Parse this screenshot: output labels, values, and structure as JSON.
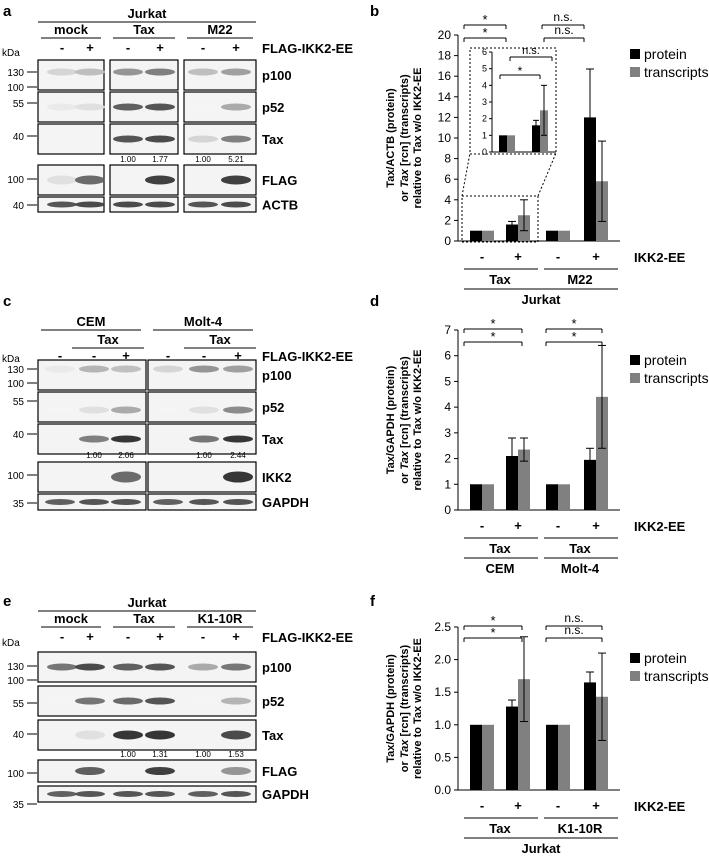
{
  "panel_letters": [
    "a",
    "b",
    "c",
    "d",
    "e",
    "f"
  ],
  "blot_a": {
    "cell_line": "Jurkat",
    "groups": [
      "mock",
      "Tax",
      "M22"
    ],
    "signs": [
      "-",
      "+",
      "-",
      "+",
      "-",
      "+"
    ],
    "treatment": "FLAG-IKK2-EE",
    "kda_label": "kDa",
    "bands": [
      "p100",
      "p52",
      "Tax",
      "FLAG",
      "ACTB"
    ],
    "markers": [
      "130",
      "100",
      "55",
      "40",
      "100",
      "40"
    ],
    "quant": [
      "1.00",
      "1.77",
      "1.00",
      "5.21"
    ]
  },
  "blot_c": {
    "groups": [
      "CEM",
      "Molt-4"
    ],
    "sub_groups": [
      "Tax",
      "Tax"
    ],
    "signs": [
      "-",
      "-",
      "+",
      "-",
      "-",
      "+"
    ],
    "treatment": "FLAG-IKK2-EE",
    "kda_label": "kDa",
    "bands": [
      "p100",
      "p52",
      "Tax",
      "IKK2",
      "GAPDH"
    ],
    "markers": [
      "130",
      "100",
      "55",
      "40",
      "100",
      "35"
    ],
    "quant": [
      "1.00",
      "2.06",
      "1.00",
      "2.44"
    ]
  },
  "blot_e": {
    "cell_line": "Jurkat",
    "groups": [
      "mock",
      "Tax",
      "K1-10R"
    ],
    "signs": [
      "-",
      "+",
      "-",
      "+",
      "-",
      "+"
    ],
    "treatment": "FLAG-IKK2-EE",
    "kda_label": "kDa",
    "bands": [
      "p100",
      "p52",
      "Tax",
      "FLAG",
      "GAPDH"
    ],
    "markers": [
      "130",
      "100",
      "55",
      "40",
      "100",
      "35"
    ],
    "quant": [
      "1.00",
      "1.31",
      "1.00",
      "1.53"
    ]
  },
  "chart_data": [
    {
      "id": "b",
      "type": "bar",
      "ylabel": [
        "Tax/ACTB (protein)",
        "or Tax [rcn] (transcripts)",
        "relative to Tax w/o IKK2-EE"
      ],
      "ylim": [
        0,
        20
      ],
      "yticks": [
        "0",
        "2",
        "4",
        "6",
        "8",
        "10",
        "12",
        "14",
        "16",
        "18",
        "20"
      ],
      "signs": [
        "-",
        "+",
        "-",
        "+"
      ],
      "group_labels": [
        "Tax",
        "M22"
      ],
      "cell_line": "Jurkat",
      "treatment_label": "IKK2-EE",
      "legend": [
        "protein",
        "transcripts"
      ],
      "colors": [
        "#000000",
        "#808080"
      ],
      "series": [
        {
          "name": "protein",
          "values": [
            1.0,
            1.6,
            1.0,
            12.0
          ],
          "errors": [
            0,
            0.3,
            0,
            4.7
          ]
        },
        {
          "name": "transcripts",
          "values": [
            1.0,
            2.5,
            1.0,
            5.8
          ],
          "errors": [
            0,
            1.5,
            0,
            3.9
          ]
        }
      ],
      "sig": [
        "*",
        "n.s.",
        "*",
        "n.s."
      ],
      "inset": {
        "ylim": [
          0,
          6
        ],
        "yticks": [
          "0",
          "1",
          "2",
          "3",
          "4",
          "5",
          "6"
        ],
        "sig": [
          "*",
          "n.s."
        ]
      }
    },
    {
      "id": "d",
      "type": "bar",
      "ylabel": [
        "Tax/GAPDH (protein)",
        "or Tax [rcn] (transcripts)",
        "relative to Tax w/o IKK2-EE"
      ],
      "ylim": [
        0,
        7
      ],
      "yticks": [
        "0",
        "1",
        "2",
        "3",
        "4",
        "5",
        "6",
        "7"
      ],
      "signs": [
        "-",
        "+",
        "-",
        "+"
      ],
      "group_labels": [
        "Tax",
        "Tax"
      ],
      "cell_lines": [
        "CEM",
        "Molt-4"
      ],
      "treatment_label": "IKK2-EE",
      "legend": [
        "protein",
        "transcripts"
      ],
      "colors": [
        "#000000",
        "#808080"
      ],
      "series": [
        {
          "name": "protein",
          "values": [
            1.0,
            2.1,
            1.0,
            1.95
          ],
          "errors": [
            0,
            0.7,
            0,
            0.45
          ]
        },
        {
          "name": "transcripts",
          "values": [
            1.0,
            2.35,
            1.0,
            4.4
          ],
          "errors": [
            0,
            0.45,
            0,
            2.0
          ]
        }
      ],
      "sig": [
        "*",
        "*",
        "*",
        "*"
      ]
    },
    {
      "id": "f",
      "type": "bar",
      "ylabel": [
        "Tax/GAPDH (protein)",
        "or Tax [rcn] (transcripts)",
        "relative to Tax w/o IKK2-EE"
      ],
      "ylim": [
        0,
        2.5
      ],
      "yticks": [
        "0.0",
        "0.5",
        "1.0",
        "1.5",
        "2.0",
        "2.5"
      ],
      "signs": [
        "-",
        "+",
        "-",
        "+"
      ],
      "group_labels": [
        "Tax",
        "K1-10R"
      ],
      "cell_line": "Jurkat",
      "treatment_label": "IKK2-EE",
      "legend": [
        "protein",
        "transcripts"
      ],
      "colors": [
        "#000000",
        "#808080"
      ],
      "series": [
        {
          "name": "protein",
          "values": [
            1.0,
            1.28,
            1.0,
            1.65
          ],
          "errors": [
            0,
            0.1,
            0,
            0.16
          ]
        },
        {
          "name": "transcripts",
          "values": [
            1.0,
            1.7,
            1.0,
            1.43
          ],
          "errors": [
            0,
            0.65,
            0,
            0.67
          ]
        }
      ],
      "sig": [
        "*",
        "n.s.",
        "*",
        "n.s."
      ]
    }
  ]
}
